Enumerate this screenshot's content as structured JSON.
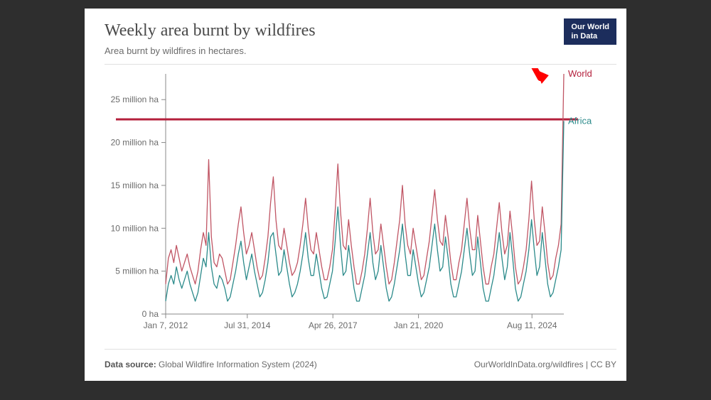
{
  "chart": {
    "type": "line",
    "title": "Weekly area burnt by wildfires",
    "subtitle": "Area burnt by wildfires in hectares.",
    "logo_text_line1": "Our World",
    "logo_text_line2": "in Data",
    "logo_bg": "#1c2d5c",
    "logo_fg": "#ffffff",
    "background_color": "#ffffff",
    "page_bg": "#2e2e2e",
    "title_color": "#4a4a4a",
    "subtitle_color": "#6b6b6b",
    "title_fontsize": 24,
    "subtitle_fontsize": 13,
    "axis_label_fontsize": 12,
    "axis_label_color": "#6b6b6b",
    "tick_color": "#888888",
    "y_axis": {
      "min": 0,
      "max": 28,
      "ticks": [
        0,
        5,
        10,
        15,
        20,
        25
      ],
      "tick_labels": [
        "0 ha",
        "5 million ha",
        "10 million ha",
        "15 million ha",
        "20 million ha",
        "25 million ha"
      ]
    },
    "x_axis": {
      "tick_positions": [
        0,
        0.205,
        0.42,
        0.635,
        0.92
      ],
      "tick_labels": [
        "Jan 7, 2012",
        "Jul 31, 2014",
        "Apr 26, 2017",
        "Jan 21, 2020",
        "Aug 11, 2024"
      ]
    },
    "reference_line": {
      "value": 22.7,
      "color": "#b4203c",
      "width": 3
    },
    "series": [
      {
        "name": "World",
        "label": "World",
        "color": "#c05564",
        "line_width": 1.3,
        "label_color": "#b4203c",
        "points": [
          3.5,
          6.5,
          7.5,
          6.0,
          8.0,
          6.5,
          5.0,
          6.0,
          7.0,
          5.5,
          4.5,
          3.5,
          5.0,
          7.5,
          9.5,
          8.0,
          18.0,
          9.0,
          6.0,
          5.5,
          7.0,
          6.5,
          5.0,
          3.5,
          4.0,
          6.0,
          8.0,
          10.5,
          12.5,
          9.5,
          7.0,
          8.0,
          9.5,
          7.5,
          5.5,
          4.0,
          4.5,
          6.5,
          9.0,
          13.0,
          16.0,
          11.0,
          8.0,
          7.5,
          10.0,
          8.0,
          6.0,
          4.5,
          5.0,
          6.0,
          8.0,
          10.5,
          13.5,
          10.0,
          7.5,
          7.0,
          9.5,
          7.5,
          5.5,
          4.0,
          4.0,
          5.5,
          7.5,
          12.0,
          17.5,
          12.0,
          8.0,
          7.5,
          11.0,
          8.0,
          5.5,
          3.5,
          3.5,
          5.0,
          7.0,
          10.0,
          13.5,
          9.5,
          7.0,
          7.5,
          10.5,
          8.0,
          5.5,
          3.5,
          4.0,
          6.0,
          8.5,
          11.0,
          15.0,
          10.5,
          8.0,
          7.0,
          10.0,
          8.0,
          6.0,
          4.0,
          4.5,
          6.5,
          8.5,
          11.5,
          14.5,
          11.0,
          8.5,
          8.0,
          11.5,
          9.0,
          6.0,
          4.0,
          4.0,
          6.0,
          7.5,
          10.5,
          13.5,
          10.0,
          7.5,
          7.5,
          11.5,
          8.5,
          5.5,
          3.5,
          3.5,
          5.5,
          7.0,
          10.0,
          13.0,
          9.5,
          7.0,
          8.0,
          12.0,
          9.0,
          5.5,
          3.5,
          4.0,
          5.5,
          7.5,
          11.0,
          15.5,
          11.0,
          8.0,
          8.5,
          12.5,
          9.5,
          6.0,
          4.0,
          4.5,
          6.5,
          8.0,
          10.5,
          28.0
        ]
      },
      {
        "name": "Africa",
        "label": "Africa",
        "color": "#2b8a8a",
        "line_width": 1.3,
        "label_color": "#2b8a8a",
        "points": [
          1.5,
          3.5,
          4.5,
          3.5,
          5.5,
          4.0,
          3.0,
          4.0,
          5.0,
          3.5,
          2.5,
          1.5,
          2.5,
          4.5,
          6.5,
          5.5,
          9.5,
          5.5,
          3.5,
          3.0,
          4.5,
          4.0,
          3.0,
          1.5,
          2.0,
          3.5,
          5.0,
          7.0,
          8.5,
          6.0,
          4.0,
          5.5,
          7.0,
          5.0,
          3.5,
          2.0,
          2.5,
          4.0,
          6.0,
          9.0,
          9.5,
          7.0,
          4.5,
          5.0,
          7.5,
          5.5,
          3.5,
          2.0,
          2.5,
          3.5,
          5.0,
          7.0,
          9.5,
          6.5,
          4.5,
          4.5,
          7.0,
          5.0,
          3.0,
          1.8,
          2.0,
          3.5,
          5.0,
          8.5,
          12.5,
          8.0,
          4.5,
          5.0,
          8.0,
          5.5,
          3.0,
          1.5,
          1.5,
          3.0,
          4.5,
          7.0,
          9.5,
          6.0,
          4.0,
          5.0,
          8.0,
          5.5,
          3.0,
          1.5,
          2.0,
          3.5,
          5.5,
          7.5,
          10.5,
          7.0,
          4.5,
          4.5,
          7.5,
          5.5,
          3.5,
          2.0,
          2.5,
          4.0,
          5.5,
          8.0,
          10.5,
          7.5,
          5.0,
          5.5,
          9.0,
          6.5,
          3.5,
          2.0,
          2.0,
          3.5,
          5.0,
          7.5,
          10.0,
          7.0,
          4.5,
          5.0,
          9.0,
          6.0,
          3.0,
          1.5,
          1.5,
          3.0,
          4.5,
          7.0,
          9.5,
          6.5,
          4.0,
          5.5,
          9.5,
          6.5,
          3.0,
          1.5,
          2.0,
          3.5,
          5.0,
          7.5,
          11.0,
          7.5,
          4.5,
          5.5,
          9.5,
          6.5,
          3.5,
          2.0,
          2.5,
          4.0,
          5.5,
          7.5,
          22.5
        ]
      }
    ],
    "arrow": {
      "color": "#ff0000",
      "target_x": 0.955,
      "target_y_value": 28.0,
      "angle_deg": 45,
      "length": 36
    },
    "footer": {
      "source_label": "Data source:",
      "source_text": "Global Wildfire Information System (2024)",
      "attribution": "OurWorldInData.org/wildfires | CC BY",
      "color": "#6b6b6b",
      "fontsize": 12
    }
  }
}
